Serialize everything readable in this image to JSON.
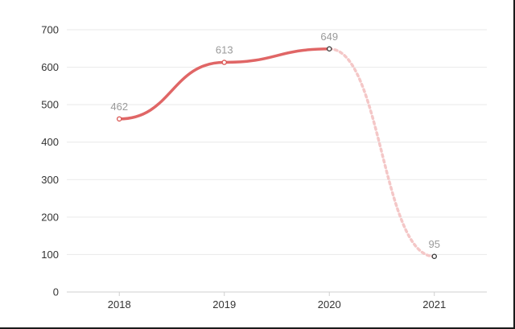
{
  "chart_data": {
    "type": "line",
    "categories": [
      "2018",
      "2019",
      "2020",
      "2021"
    ],
    "series": [
      {
        "values": [
          462,
          613,
          649,
          95
        ]
      }
    ],
    "dashed_from_index": 2,
    "y_ticks": [
      "0",
      "100",
      "200",
      "300",
      "400",
      "500",
      "600",
      "700"
    ],
    "ylim": [
      0,
      700
    ],
    "grid": true,
    "colors": {
      "line": "#e06666",
      "dashed_line": "#f4c7c7",
      "marker_stroke_actual": "#d9534f",
      "marker_stroke_forecast": "#333333",
      "grid": "#e9e9e9",
      "label": "#9a9a9a"
    }
  }
}
